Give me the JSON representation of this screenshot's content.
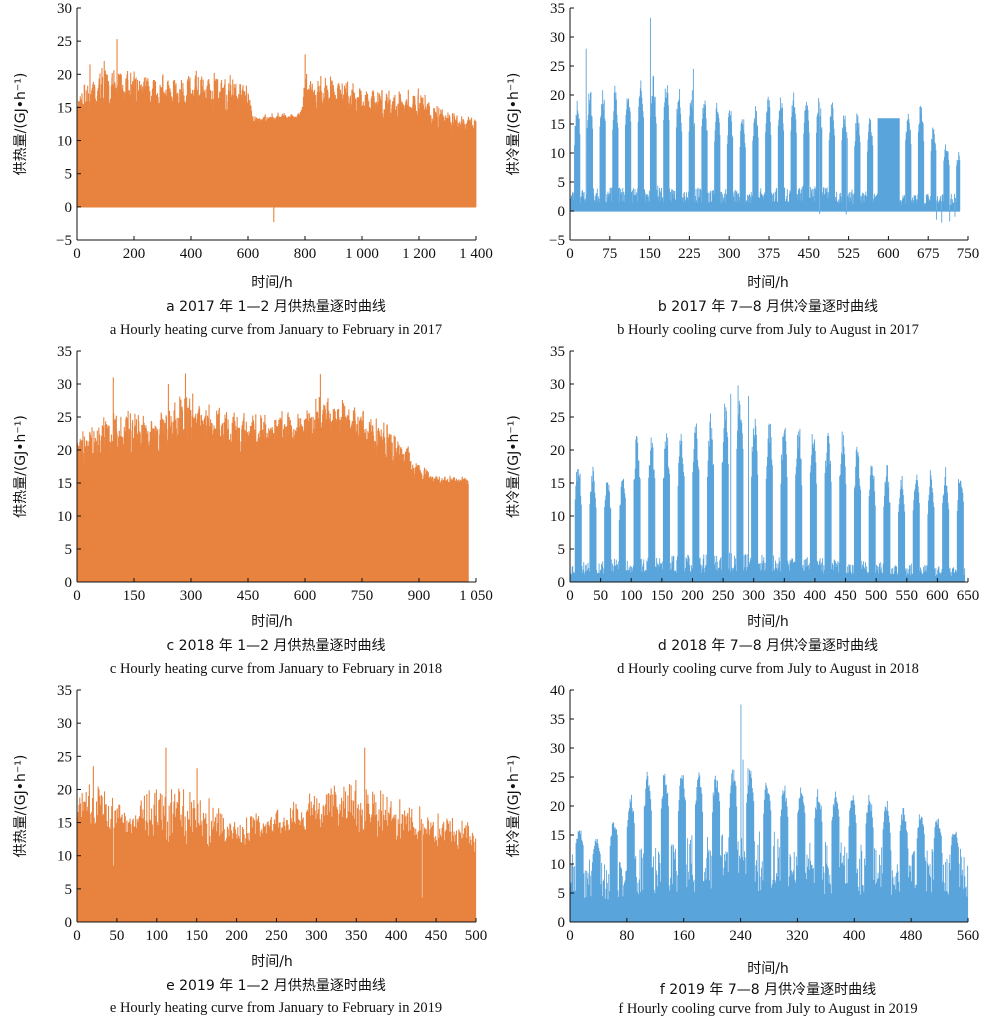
{
  "heating_color": "#E8833F",
  "cooling_color": "#5AA4DC",
  "chart_data": [
    {
      "id": "a",
      "type": "bar",
      "kind": "heating",
      "xlabel": "时间/h",
      "ylabel": "供热量/(GJ•h⁻¹)",
      "xlim": [
        0,
        1400
      ],
      "ylim": [
        -5,
        30
      ],
      "xticks": [
        0,
        200,
        400,
        600,
        800,
        1000,
        1200,
        1400
      ],
      "xtick_labels": [
        "0",
        "200",
        "400",
        "600",
        "800",
        "1 000",
        "1 200",
        "1 400"
      ],
      "yticks": [
        -5,
        0,
        5,
        10,
        15,
        20,
        25,
        30
      ],
      "ytick_labels": [
        "−5",
        "0",
        "5",
        "10",
        "15",
        "20",
        "25",
        "30"
      ],
      "caption_cn": "a  2017 年 1—2 月供热量逐时曲线",
      "caption_en": "a  Hourly heating curve from January to February in 2017",
      "profile": {
        "seed": 11,
        "duration": 1400,
        "envelope": [
          [
            0,
            16
          ],
          [
            20,
            18
          ],
          [
            60,
            20
          ],
          [
            140,
            21
          ],
          [
            260,
            19.5
          ],
          [
            400,
            20
          ],
          [
            520,
            20
          ],
          [
            600,
            18
          ],
          [
            620,
            13.5
          ],
          [
            700,
            14
          ],
          [
            780,
            14
          ],
          [
            800,
            20
          ],
          [
            900,
            19
          ],
          [
            1000,
            18
          ],
          [
            1100,
            17
          ],
          [
            1200,
            17.5
          ],
          [
            1300,
            14
          ],
          [
            1400,
            13.5
          ]
        ],
        "base": [
          [
            0,
            13
          ],
          [
            600,
            13
          ],
          [
            620,
            12.5
          ],
          [
            780,
            13
          ],
          [
            800,
            14
          ],
          [
            1100,
            12.5
          ],
          [
            1300,
            11
          ],
          [
            1400,
            10.5
          ]
        ],
        "peaks": [
          [
            140,
            25.3
          ],
          [
            800,
            23
          ],
          [
            95,
            22
          ],
          [
            45,
            21.5
          ]
        ],
        "dips": [
          [
            690,
            -2.3
          ],
          [
            680,
            1
          ],
          [
            785,
            11
          ]
        ],
        "daily_amp": 0.35
      }
    },
    {
      "id": "b",
      "type": "bar",
      "kind": "cooling",
      "xlabel": "时间/h",
      "ylabel": "供冷量/(GJ•h⁻¹)",
      "xlim": [
        0,
        750
      ],
      "ylim": [
        -5,
        35
      ],
      "xticks": [
        0,
        75,
        150,
        225,
        300,
        375,
        450,
        525,
        600,
        675,
        750
      ],
      "xtick_labels": [
        "0",
        "75",
        "150",
        "225",
        "300",
        "375",
        "450",
        "525",
        "600",
        "675",
        "750"
      ],
      "yticks": [
        -5,
        0,
        5,
        10,
        15,
        20,
        25,
        30,
        35
      ],
      "ytick_labels": [
        "−5",
        "0",
        "5",
        "10",
        "15",
        "20",
        "25",
        "30",
        "35"
      ],
      "caption_cn": "b  2017 年 7—8 月供冷量逐时曲线",
      "caption_en": "b  Hourly cooling curve from July to August in 2017",
      "profile": {
        "seed": 23,
        "duration": 735,
        "envelope": [
          [
            0,
            15
          ],
          [
            20,
            21
          ],
          [
            120,
            21
          ],
          [
            150,
            23
          ],
          [
            220,
            21
          ],
          [
            300,
            18
          ],
          [
            330,
            16
          ],
          [
            375,
            20
          ],
          [
            450,
            20.5
          ],
          [
            525,
            17
          ],
          [
            560,
            16
          ],
          [
            620,
            16
          ],
          [
            660,
            19
          ],
          [
            700,
            12
          ],
          [
            735,
            10
          ]
        ],
        "base": [
          [
            0,
            2.5
          ],
          [
            150,
            3
          ],
          [
            300,
            2.5
          ],
          [
            450,
            3
          ],
          [
            600,
            2
          ],
          [
            735,
            2
          ]
        ],
        "peaks": [
          [
            151,
            33.3
          ],
          [
            30,
            28
          ],
          [
            232,
            24.5
          ]
        ],
        "plateau": [
          580,
          620,
          16
        ],
        "neg_dips": [
          [
            690,
            -1.5
          ],
          [
            700,
            -2
          ],
          [
            715,
            -1.8
          ],
          [
            725,
            -1
          ],
          [
            470,
            -0.5
          ],
          [
            520,
            -0.6
          ]
        ],
        "daily_amp": 1.0
      }
    },
    {
      "id": "c",
      "type": "bar",
      "kind": "heating",
      "xlabel": "时间/h",
      "ylabel": "供热量/(GJ•h⁻¹)",
      "xlim": [
        0,
        1050
      ],
      "ylim": [
        0,
        35
      ],
      "xticks": [
        0,
        150,
        300,
        450,
        600,
        750,
        900,
        1050
      ],
      "xtick_labels": [
        "0",
        "150",
        "300",
        "450",
        "600",
        "750",
        "900",
        "1 050"
      ],
      "yticks": [
        0,
        5,
        10,
        15,
        20,
        25,
        30,
        35
      ],
      "ytick_labels": [
        "0",
        "5",
        "10",
        "15",
        "20",
        "25",
        "30",
        "35"
      ],
      "caption_cn": "c  2018 年 1—2 月供热量逐时曲线",
      "caption_en": "c  Hourly heating curve from January to February in 2018",
      "profile": {
        "seed": 37,
        "duration": 1030,
        "envelope": [
          [
            0,
            22
          ],
          [
            60,
            24
          ],
          [
            120,
            26
          ],
          [
            200,
            25
          ],
          [
            290,
            28
          ],
          [
            400,
            26
          ],
          [
            500,
            25
          ],
          [
            600,
            26
          ],
          [
            650,
            28
          ],
          [
            750,
            26
          ],
          [
            850,
            22
          ],
          [
            900,
            18
          ],
          [
            950,
            16
          ],
          [
            1030,
            16
          ]
        ],
        "base": [
          [
            0,
            16
          ],
          [
            150,
            18
          ],
          [
            300,
            20
          ],
          [
            450,
            19
          ],
          [
            600,
            21
          ],
          [
            700,
            22
          ],
          [
            800,
            18
          ],
          [
            900,
            15
          ],
          [
            1030,
            14.5
          ]
        ],
        "peaks": [
          [
            285,
            31.6
          ],
          [
            95,
            31
          ],
          [
            640,
            31.5
          ],
          [
            240,
            30
          ]
        ],
        "dips": [
          [
            55,
            13
          ],
          [
            290,
            9
          ],
          [
            575,
            11
          ],
          [
            870,
            14
          ]
        ],
        "daily_amp": 0.3
      }
    },
    {
      "id": "d",
      "type": "bar",
      "kind": "cooling",
      "xlabel": "时间/h",
      "ylabel": "供冷量/(GJ•h⁻¹)",
      "xlim": [
        0,
        650
      ],
      "ylim": [
        0,
        35
      ],
      "xticks": [
        0,
        50,
        100,
        150,
        200,
        250,
        300,
        350,
        400,
        450,
        500,
        550,
        600,
        650
      ],
      "xtick_labels": [
        "0",
        "50",
        "100",
        "150",
        "200",
        "250",
        "300",
        "350",
        "400",
        "450",
        "500",
        "550",
        "600",
        "650"
      ],
      "yticks": [
        0,
        5,
        10,
        15,
        20,
        25,
        30,
        35
      ],
      "ytick_labels": [
        "0",
        "5",
        "10",
        "15",
        "20",
        "25",
        "30",
        "35"
      ],
      "caption_cn": "d  2018 年 7—8 月供冷量逐时曲线",
      "caption_en": "d  Hourly cooling curve from July to August in 2018",
      "profile": {
        "seed": 53,
        "duration": 645,
        "envelope": [
          [
            0,
            19
          ],
          [
            50,
            17
          ],
          [
            80,
            14
          ],
          [
            100,
            22
          ],
          [
            140,
            22
          ],
          [
            200,
            23
          ],
          [
            250,
            26
          ],
          [
            275,
            29
          ],
          [
            300,
            25
          ],
          [
            350,
            24
          ],
          [
            400,
            23
          ],
          [
            450,
            22
          ],
          [
            500,
            18
          ],
          [
            550,
            16
          ],
          [
            600,
            17
          ],
          [
            645,
            17
          ]
        ],
        "base": [
          [
            0,
            2
          ],
          [
            100,
            2.5
          ],
          [
            275,
            3
          ],
          [
            400,
            2.5
          ],
          [
            645,
            1.5
          ]
        ],
        "peaks": [
          [
            274,
            29.8
          ],
          [
            262,
            28.5
          ],
          [
            291,
            28.2
          ]
        ],
        "daily_amp": 1.0
      }
    },
    {
      "id": "e",
      "type": "bar",
      "kind": "heating",
      "xlabel": "时间/h",
      "ylabel": "供热量/(GJ•h⁻¹)",
      "xlim": [
        0,
        500
      ],
      "ylim": [
        0,
        35
      ],
      "xticks": [
        0,
        50,
        100,
        150,
        200,
        250,
        300,
        350,
        400,
        450,
        500
      ],
      "xtick_labels": [
        "0",
        "50",
        "100",
        "150",
        "200",
        "250",
        "300",
        "350",
        "400",
        "450",
        "500"
      ],
      "yticks": [
        0,
        5,
        10,
        15,
        20,
        25,
        30,
        35
      ],
      "ytick_labels": [
        "0",
        "5",
        "10",
        "15",
        "20",
        "25",
        "30",
        "35"
      ],
      "caption_cn": "e  2019 年 1—2 月供热量逐时曲线",
      "caption_en": "e  Hourly heating curve from January to February in 2019",
      "profile": {
        "seed": 71,
        "duration": 500,
        "envelope": [
          [
            0,
            19
          ],
          [
            30,
            22
          ],
          [
            60,
            17
          ],
          [
            110,
            21
          ],
          [
            150,
            20
          ],
          [
            200,
            15.5
          ],
          [
            250,
            17
          ],
          [
            300,
            20.5
          ],
          [
            350,
            21.5
          ],
          [
            400,
            18.5
          ],
          [
            450,
            16
          ],
          [
            500,
            15
          ]
        ],
        "base": [
          [
            0,
            14.5
          ],
          [
            100,
            12
          ],
          [
            200,
            11
          ],
          [
            300,
            14
          ],
          [
            400,
            12
          ],
          [
            500,
            10.5
          ]
        ],
        "peaks": [
          [
            111,
            26.3
          ],
          [
            360,
            26.3
          ],
          [
            20,
            23.5
          ],
          [
            150,
            23.2
          ]
        ],
        "dips": [
          [
            45,
            8.5
          ],
          [
            432,
            3.7
          ]
        ],
        "daily_amp": 0.3
      }
    },
    {
      "id": "f",
      "type": "bar",
      "kind": "cooling",
      "xlabel": "时间/h",
      "ylabel": "供冷量/(GJ•h⁻¹)",
      "xlim": [
        0,
        560
      ],
      "ylim": [
        0,
        40
      ],
      "xticks": [
        0,
        80,
        160,
        240,
        320,
        400,
        480,
        560
      ],
      "xtick_labels": [
        "0",
        "80",
        "160",
        "240",
        "320",
        "400",
        "480",
        "560"
      ],
      "yticks": [
        0,
        5,
        10,
        15,
        20,
        25,
        30,
        35,
        40
      ],
      "ytick_labels": [
        "0",
        "5",
        "10",
        "15",
        "20",
        "25",
        "30",
        "35",
        "40"
      ],
      "caption_cn": "f  2019 年 7—8 月供冷量逐时曲线",
      "caption_en": "f  Hourly cooling curve from July to August in 2019",
      "profile": {
        "seed": 89,
        "duration": 560,
        "envelope": [
          [
            0,
            17
          ],
          [
            40,
            14
          ],
          [
            70,
            19
          ],
          [
            110,
            26
          ],
          [
            160,
            26
          ],
          [
            200,
            25
          ],
          [
            240,
            27
          ],
          [
            280,
            24
          ],
          [
            320,
            23
          ],
          [
            400,
            22
          ],
          [
            440,
            21
          ],
          [
            480,
            19
          ],
          [
            520,
            18
          ],
          [
            560,
            14
          ]
        ],
        "base": [
          [
            0,
            8
          ],
          [
            60,
            7.5
          ],
          [
            160,
            10
          ],
          [
            240,
            11
          ],
          [
            320,
            10
          ],
          [
            400,
            9
          ],
          [
            480,
            8.5
          ],
          [
            560,
            8.5
          ]
        ],
        "peaks": [
          [
            240,
            37.5
          ],
          [
            243,
            28
          ],
          [
            250,
            26.5
          ]
        ],
        "daily_amp": 1.0
      }
    }
  ]
}
